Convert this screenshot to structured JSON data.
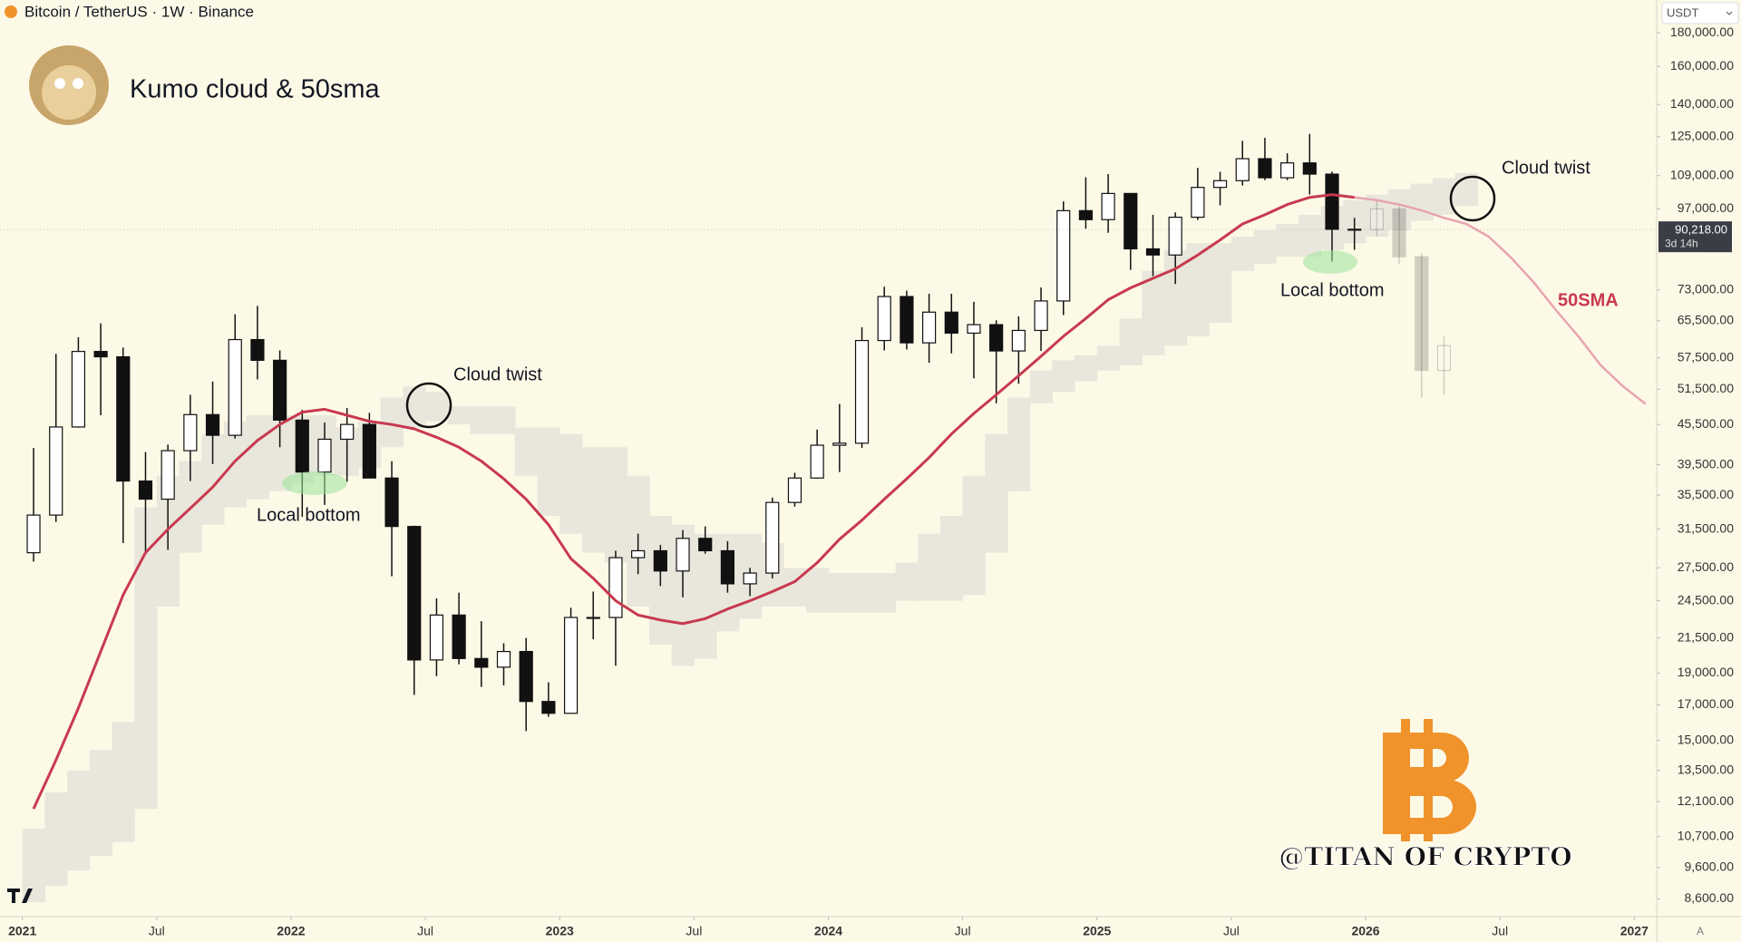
{
  "header": {
    "symbol": "Bitcoin / TetherUS · 1W · Binance",
    "currency": "USDT",
    "auto_scale": "A"
  },
  "chart_data": {
    "type": "candlestick",
    "title": "Kumo cloud & 50sma",
    "watermark": "@TITAN OF CRYPTO",
    "log_scale": true,
    "ylim": [
      8080,
      202000
    ],
    "xlim": [
      "2020-12",
      "2027-02"
    ],
    "yticks": [
      {
        "value": 180000,
        "label": "180,000.00"
      },
      {
        "value": 160000,
        "label": "160,000.00"
      },
      {
        "value": 140000,
        "label": "140,000.00"
      },
      {
        "value": 125000,
        "label": "125,000.00"
      },
      {
        "value": 109000,
        "label": "109,000.00"
      },
      {
        "value": 97000,
        "label": "97,000.00"
      },
      {
        "value": 73000,
        "label": "73,000.00"
      },
      {
        "value": 65500,
        "label": "65,500.00"
      },
      {
        "value": 57500,
        "label": "57,500.00"
      },
      {
        "value": 51500,
        "label": "51,500.00"
      },
      {
        "value": 45500,
        "label": "45,500.00"
      },
      {
        "value": 39500,
        "label": "39,500.00"
      },
      {
        "value": 35500,
        "label": "35,500.00"
      },
      {
        "value": 31500,
        "label": "31,500.00"
      },
      {
        "value": 27500,
        "label": "27,500.00"
      },
      {
        "value": 24500,
        "label": "24,500.00"
      },
      {
        "value": 21500,
        "label": "21,500.00"
      },
      {
        "value": 19000,
        "label": "19,000.00"
      },
      {
        "value": 17000,
        "label": "17,000.00"
      },
      {
        "value": 15000,
        "label": "15,000.00"
      },
      {
        "value": 13500,
        "label": "13,500.00"
      },
      {
        "value": 12100,
        "label": "12,100.00"
      },
      {
        "value": 10700,
        "label": "10,700.00"
      },
      {
        "value": 9600,
        "label": "9,600.00"
      },
      {
        "value": 8600,
        "label": "8,600.00"
      }
    ],
    "xticks": [
      {
        "value": "2021-01",
        "label": "2021"
      },
      {
        "value": "2021-07",
        "label": "Jul"
      },
      {
        "value": "2022-01",
        "label": "2022"
      },
      {
        "value": "2022-07",
        "label": "Jul"
      },
      {
        "value": "2023-01",
        "label": "2023"
      },
      {
        "value": "2023-07",
        "label": "Jul"
      },
      {
        "value": "2024-01",
        "label": "2024"
      },
      {
        "value": "2024-07",
        "label": "Jul"
      },
      {
        "value": "2025-01",
        "label": "2025"
      },
      {
        "value": "2025-07",
        "label": "Jul"
      },
      {
        "value": "2026-01",
        "label": "2026"
      },
      {
        "value": "2026-07",
        "label": "Jul"
      },
      {
        "value": "2027-01",
        "label": "2027"
      }
    ],
    "last_price": {
      "value": 90218,
      "label": "90,218.00",
      "countdown": "3d 14h"
    },
    "candles": {
      "up_color": "#ffffff",
      "down_color": "#111111",
      "x": [
        "2021-01",
        "2021-02",
        "2021-03",
        "2021-04",
        "2021-05",
        "2021-06",
        "2021-07",
        "2021-08",
        "2021-09",
        "2021-10",
        "2021-11",
        "2021-12",
        "2022-01",
        "2022-02",
        "2022-03",
        "2022-04",
        "2022-05",
        "2022-06",
        "2022-07",
        "2022-08",
        "2022-09",
        "2022-10",
        "2022-11",
        "2022-12",
        "2023-01",
        "2023-02",
        "2023-03",
        "2023-04",
        "2023-05",
        "2023-06",
        "2023-07",
        "2023-08",
        "2023-09",
        "2023-10",
        "2023-11",
        "2023-12",
        "2024-01",
        "2024-02",
        "2024-03",
        "2024-04",
        "2024-05",
        "2024-06",
        "2024-07",
        "2024-08",
        "2024-09",
        "2024-10",
        "2024-11",
        "2024-12",
        "2025-01",
        "2025-02",
        "2025-03",
        "2025-04",
        "2025-05",
        "2025-06",
        "2025-07",
        "2025-08",
        "2025-09",
        "2025-10",
        "2025-11",
        "2025-12"
      ],
      "open": [
        29000,
        33100,
        45100,
        58800,
        57700,
        37300,
        35000,
        41500,
        47100,
        43800,
        61300,
        57000,
        46200,
        38500,
        43200,
        45500,
        37700,
        31800,
        19900,
        23300,
        20000,
        19400,
        20500,
        17200,
        16500,
        23100,
        23100,
        28500,
        29200,
        27200,
        30500,
        29200,
        26000,
        27000,
        34600,
        37700,
        42300,
        42600,
        61100,
        71300,
        60600,
        67500,
        62700,
        64600,
        58900,
        63300,
        70200,
        96400,
        93400,
        102400,
        84300,
        82500,
        94200,
        104600,
        107100,
        115700,
        108200,
        114000,
        109600,
        90300
      ],
      "high": [
        41900,
        58300,
        61800,
        64900,
        59600,
        41300,
        42400,
        50500,
        52900,
        67000,
        69000,
        59000,
        47900,
        45800,
        48200,
        47400,
        40000,
        31900,
        24700,
        25200,
        22800,
        21100,
        21500,
        18400,
        23900,
        25300,
        29200,
        31000,
        29800,
        31400,
        31800,
        30200,
        27500,
        35200,
        38400,
        44700,
        48900,
        64000,
        73800,
        72800,
        72000,
        72000,
        70000,
        65600,
        66500,
        73600,
        99600,
        108400,
        109600,
        102500,
        95000,
        95800,
        112000,
        110500,
        123200,
        124500,
        117900,
        126200,
        110600,
        94000
      ],
      "low": [
        28100,
        32300,
        45000,
        47000,
        30000,
        28800,
        29300,
        37300,
        39600,
        43300,
        53300,
        42000,
        32900,
        34300,
        37200,
        37700,
        26700,
        17600,
        18800,
        19600,
        18100,
        18200,
        15500,
        16300,
        16500,
        21400,
        19500,
        26900,
        25800,
        24800,
        28900,
        25200,
        24900,
        26500,
        34100,
        37600,
        38500,
        41900,
        59000,
        59200,
        56500,
        58400,
        53500,
        49000,
        52500,
        58900,
        66800,
        90500,
        89200,
        78300,
        76600,
        74500,
        93300,
        98200,
        105300,
        107300,
        107300,
        102000,
        80600,
        84000
      ],
      "close": [
        33100,
        45100,
        58800,
        57700,
        37300,
        35000,
        41500,
        47100,
        43800,
        61300,
        57000,
        46200,
        38500,
        43200,
        45500,
        37700,
        31800,
        19900,
        23300,
        20000,
        19400,
        20500,
        17200,
        16500,
        23100,
        23100,
        28500,
        29200,
        27200,
        30500,
        29200,
        26000,
        27000,
        34600,
        37700,
        42300,
        42600,
        61100,
        71300,
        60600,
        67500,
        62700,
        64600,
        58900,
        63300,
        70200,
        96400,
        93400,
        102400,
        84300,
        82500,
        94200,
        104600,
        107100,
        115700,
        108200,
        114000,
        109600,
        90300,
        90200
      ]
    },
    "projection_candles": {
      "x": [
        "2026-01",
        "2026-02",
        "2026-03",
        "2026-04"
      ],
      "open": [
        90200,
        97000,
        82000,
        55000
      ],
      "high": [
        100000,
        98000,
        83000,
        62000
      ],
      "low": [
        88000,
        80000,
        50000,
        50500
      ],
      "close": [
        97000,
        82000,
        55000,
        60000
      ]
    },
    "sma": {
      "name": "50SMA",
      "color": "#c8394f",
      "x": [
        "2021-01",
        "2021-02",
        "2021-03",
        "2021-04",
        "2021-05",
        "2021-06",
        "2021-07",
        "2021-08",
        "2021-09",
        "2021-10",
        "2021-11",
        "2021-12",
        "2022-01",
        "2022-02",
        "2022-03",
        "2022-04",
        "2022-05",
        "2022-06",
        "2022-07",
        "2022-08",
        "2022-09",
        "2022-10",
        "2022-11",
        "2022-12",
        "2023-01",
        "2023-02",
        "2023-03",
        "2023-04",
        "2023-05",
        "2023-06",
        "2023-07",
        "2023-08",
        "2023-09",
        "2023-10",
        "2023-11",
        "2023-12",
        "2024-01",
        "2024-02",
        "2024-03",
        "2024-04",
        "2024-05",
        "2024-06",
        "2024-07",
        "2024-08",
        "2024-09",
        "2024-10",
        "2024-11",
        "2024-12",
        "2025-01",
        "2025-02",
        "2025-03",
        "2025-04",
        "2025-05",
        "2025-06",
        "2025-07",
        "2025-08",
        "2025-09",
        "2025-10",
        "2025-11",
        "2025-12"
      ],
      "values": [
        11800,
        14000,
        16800,
        20500,
        25000,
        29000,
        31500,
        33900,
        36500,
        40000,
        43000,
        45500,
        47500,
        48000,
        47000,
        46000,
        45500,
        44800,
        43500,
        42000,
        40000,
        37600,
        35000,
        32000,
        28400,
        26500,
        24500,
        23300,
        22900,
        22600,
        23000,
        23800,
        24500,
        25300,
        26200,
        28000,
        30400,
        32500,
        35000,
        37600,
        40500,
        44000,
        47300,
        50500,
        54000,
        57800,
        62000,
        66000,
        70500,
        73500,
        76000,
        78600,
        82500,
        87000,
        92000,
        95000,
        98500,
        101000,
        102000,
        101000
      ]
    },
    "sma_projection": {
      "color": "#e8a4ae",
      "x": [
        "2025-12",
        "2026-01",
        "2026-02",
        "2026-03",
        "2026-04",
        "2026-05",
        "2026-06",
        "2026-07",
        "2026-08",
        "2026-09",
        "2026-10",
        "2026-11",
        "2026-12",
        "2027-01"
      ],
      "values": [
        101000,
        100000,
        98500,
        96500,
        94000,
        92000,
        88000,
        81700,
        75000,
        68000,
        62000,
        56000,
        52000,
        48900
      ]
    },
    "cloud": {
      "color": "#e9e7dc",
      "x": [
        "2021-01",
        "2021-02",
        "2021-03",
        "2021-04",
        "2021-05",
        "2021-06",
        "2021-07",
        "2021-08",
        "2021-09",
        "2021-10",
        "2021-11",
        "2021-12",
        "2022-01",
        "2022-02",
        "2022-03",
        "2022-04",
        "2022-05",
        "2022-06",
        "2022-07",
        "2022-08",
        "2022-09",
        "2022-10",
        "2022-11",
        "2022-12",
        "2023-01",
        "2023-02",
        "2023-03",
        "2023-04",
        "2023-05",
        "2023-06",
        "2023-07",
        "2023-08",
        "2023-09",
        "2023-10",
        "2023-11",
        "2023-12",
        "2024-01",
        "2024-02",
        "2024-03",
        "2024-04",
        "2024-05",
        "2024-06",
        "2024-07",
        "2024-08",
        "2024-09",
        "2024-10",
        "2024-11",
        "2024-12",
        "2025-01",
        "2025-02",
        "2025-03",
        "2025-04",
        "2025-05",
        "2025-06",
        "2025-07",
        "2025-08",
        "2025-09",
        "2025-10",
        "2025-11",
        "2025-12",
        "2026-01",
        "2026-02",
        "2026-03",
        "2026-04",
        "2026-05"
      ],
      "upper": [
        11000,
        12500,
        13500,
        14500,
        16000,
        34000,
        38000,
        40000,
        44000,
        46000,
        47000,
        47000,
        47000,
        47000,
        45000,
        46000,
        50000,
        52000,
        51000,
        48500,
        48500,
        48500,
        45000,
        45000,
        44000,
        42000,
        42000,
        38000,
        33000,
        32000,
        31000,
        31000,
        31000,
        30000,
        27500,
        27500,
        27000,
        27000,
        27000,
        28000,
        31000,
        33000,
        38000,
        44000,
        50000,
        55000,
        57000,
        58000,
        60000,
        66000,
        78000,
        84000,
        86000,
        86000,
        88000,
        90000,
        92000,
        95000,
        98000,
        100000,
        102000,
        104000,
        106000,
        108000,
        110000
      ],
      "lower": [
        8500,
        9000,
        9500,
        10000,
        10500,
        11800,
        24000,
        29000,
        32000,
        34000,
        35000,
        36000,
        37000,
        38000,
        38000,
        39000,
        42000,
        45000,
        46000,
        45500,
        44000,
        44000,
        38000,
        33000,
        31000,
        29000,
        28000,
        24000,
        21000,
        19500,
        20000,
        22000,
        23000,
        24000,
        24000,
        23500,
        23500,
        23500,
        23500,
        24500,
        24500,
        24500,
        25000,
        29000,
        36000,
        49000,
        51000,
        53000,
        55000,
        56000,
        58000,
        60000,
        62000,
        65000,
        78000,
        80000,
        82000,
        82000,
        84000,
        86000,
        88000,
        90000,
        93000,
        95000,
        98000
      ]
    },
    "annotations": [
      "Cloud twist",
      "Cloud twist",
      "Local bottom",
      "Local bottom",
      "50SMA"
    ]
  }
}
